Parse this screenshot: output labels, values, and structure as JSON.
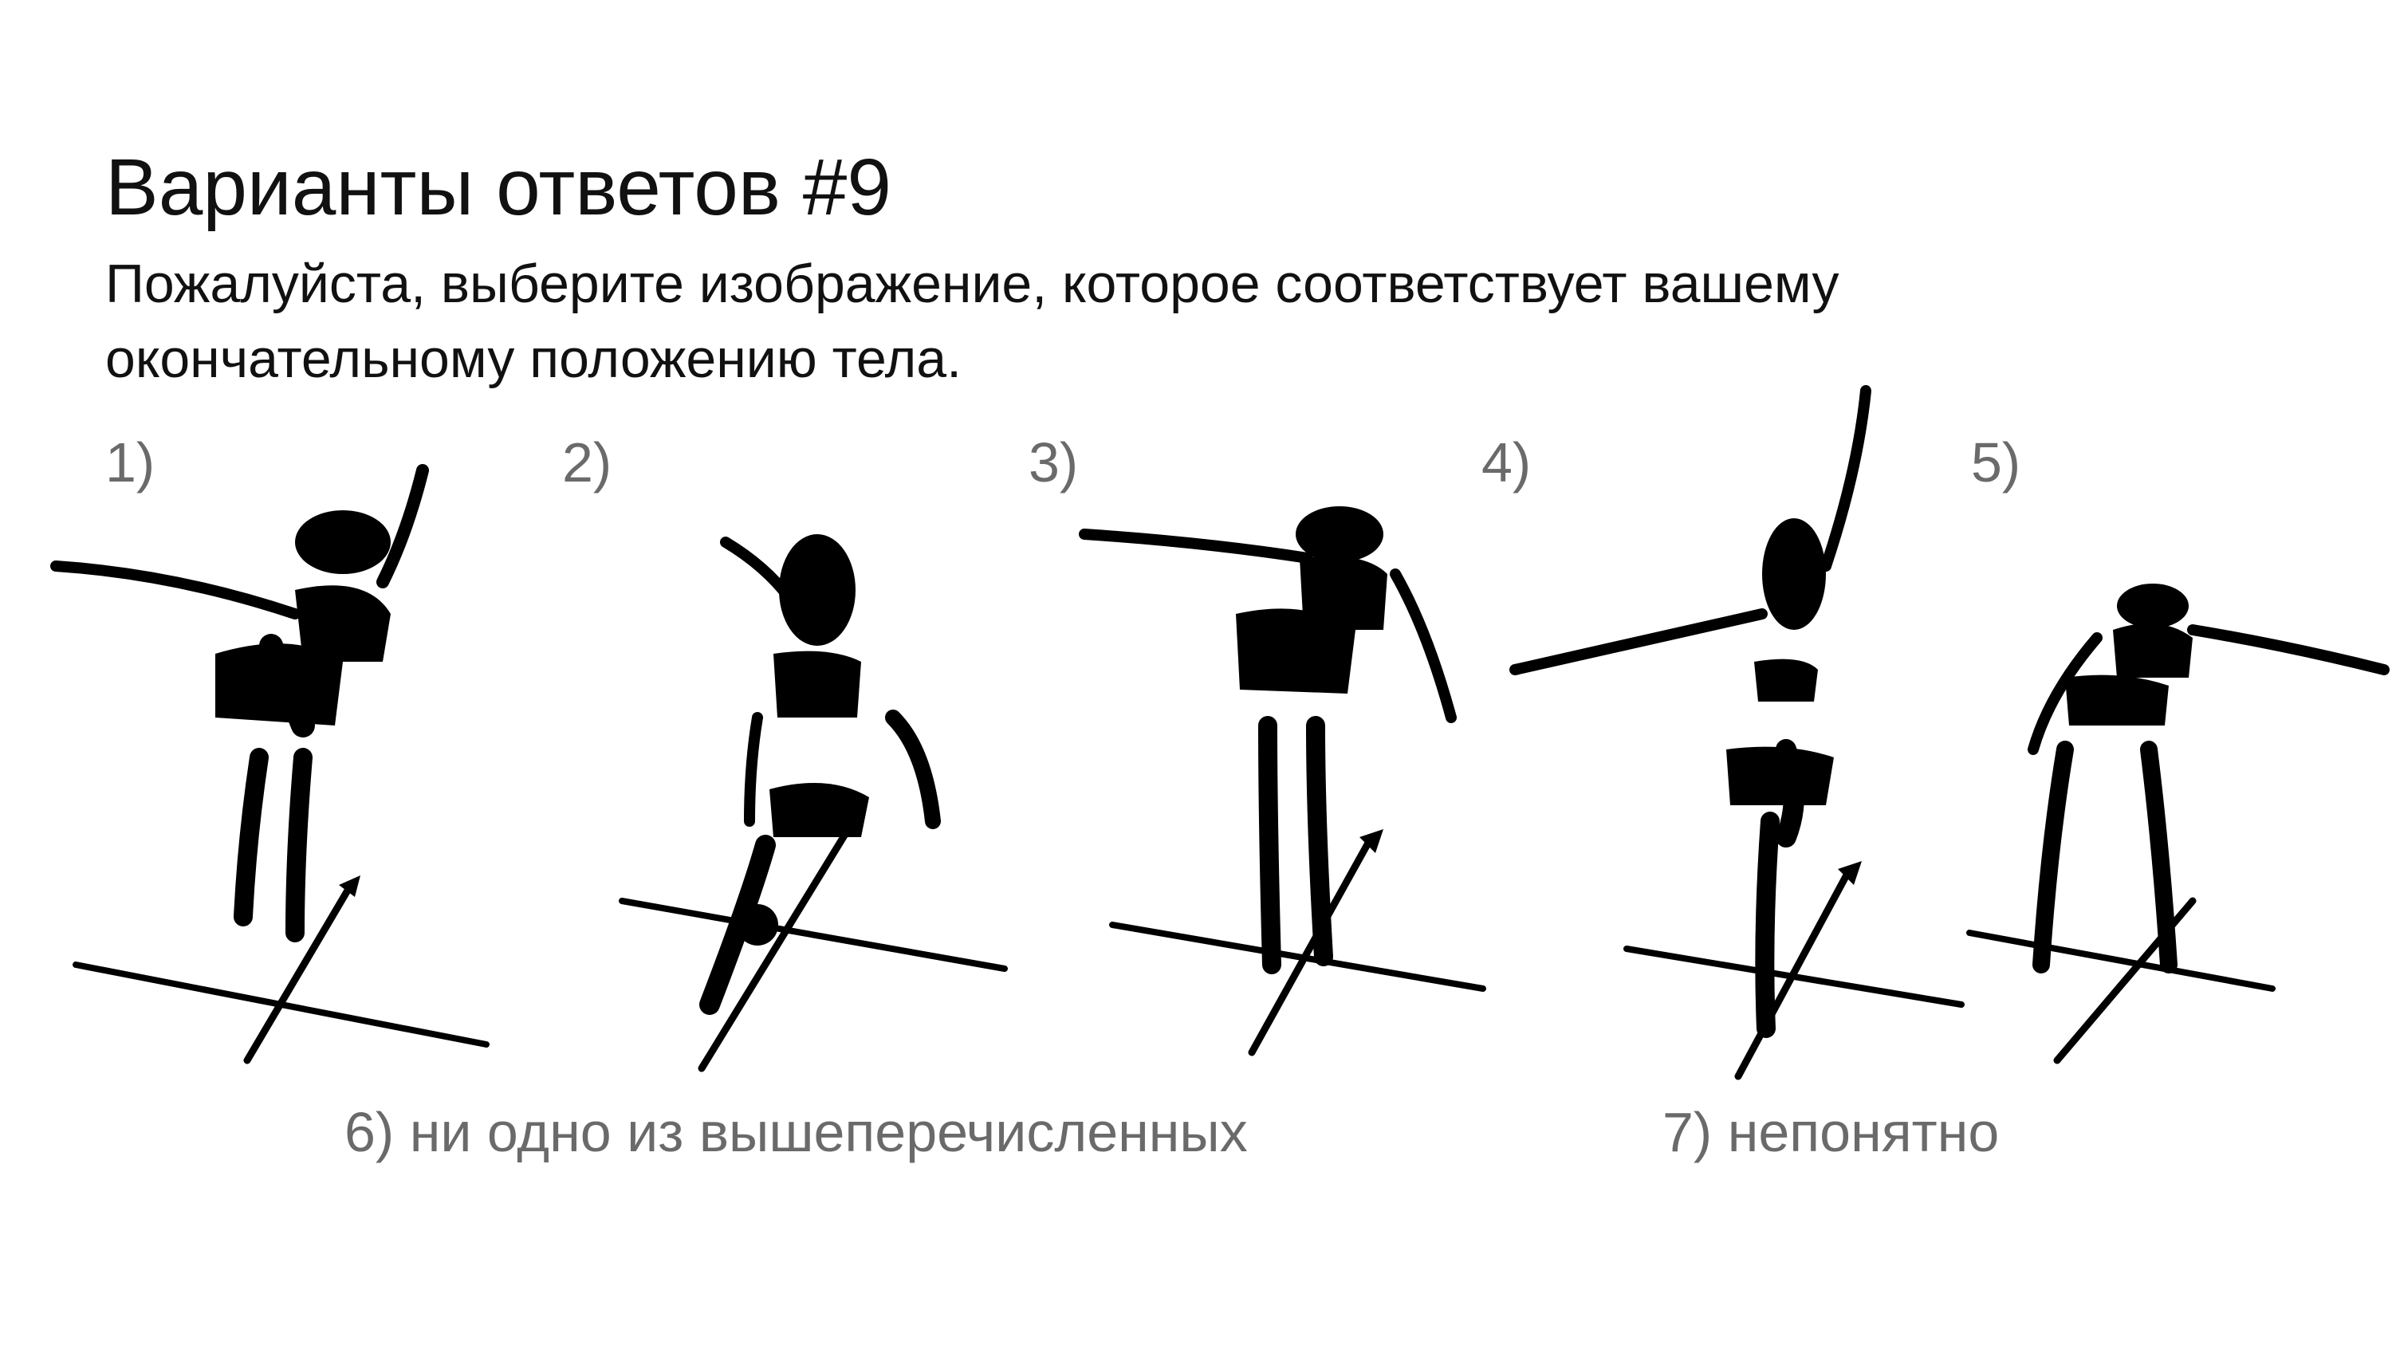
{
  "slide": {
    "title": "Варианты ответов #9",
    "subtitle": "Пожалуйста, выберите изображение, которое соответствует вашему окончательному положению тела."
  },
  "options": [
    {
      "label": "1)",
      "figure": "figure-leaning-left-arm-raised-right-arrow-forward"
    },
    {
      "label": "2)",
      "figure": "figure-kneeling-step-diagonal-arrow"
    },
    {
      "label": "3)",
      "figure": "figure-leaning-left-arm-out-arrow-forward"
    },
    {
      "label": "4)",
      "figure": "figure-standing-one-leg-arm-raised"
    },
    {
      "label": "5)",
      "figure": "figure-leaning-right-arm-out"
    }
  ],
  "extra_options": {
    "none": "6) ни одно из вышеперечисленных",
    "unclear": "7) непонятно"
  },
  "colors": {
    "text": "#111111",
    "muted": "#6a6a6a",
    "ink": "#000000"
  }
}
